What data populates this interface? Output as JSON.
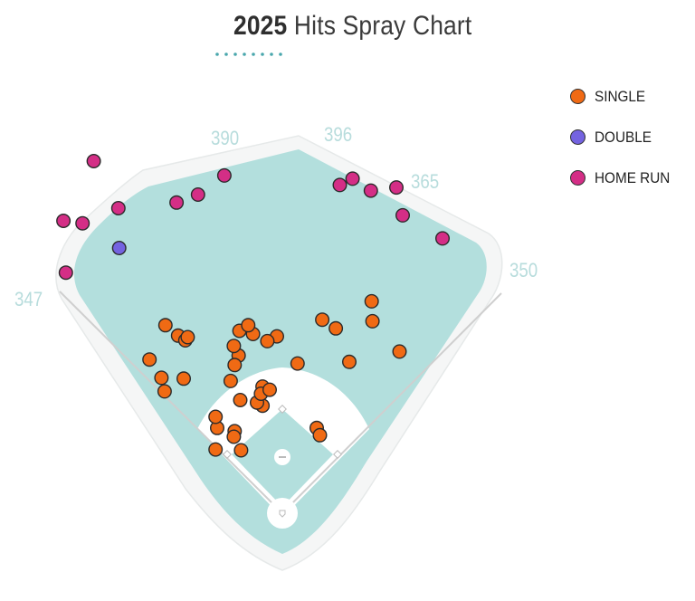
{
  "title": {
    "year": "2025",
    "rest": " Hits Spray Chart"
  },
  "colors": {
    "single": "#f06a14",
    "double": "#7463e0",
    "home_run": "#d42e86",
    "grass": "#b3dfdd",
    "warning_track": "#f4f5f5",
    "dirt": "#ffffff",
    "distance_label": "#b7dcdc",
    "title_accent": "#4aa7ad"
  },
  "distance_labels": {
    "lf": "347",
    "lcf": "390",
    "cf": "396",
    "rcf": "365",
    "rf": "350"
  },
  "legend": [
    {
      "key": "single",
      "label": "SINGLE"
    },
    {
      "key": "double",
      "label": "DOUBLE"
    },
    {
      "key": "home_run",
      "label": "HOME RUN"
    }
  ],
  "chart_data": {
    "type": "scatter",
    "title": "2025 Hits Spray Chart",
    "subtitle": "",
    "xlabel": "",
    "ylabel": "",
    "grid": false,
    "legend_position": "top-right",
    "coordinate_note": "hit locations on a baseball field diagram; home plate at origin, units arbitrary (field-relative)",
    "series": [
      {
        "name": "SINGLE",
        "color": "#f06a14",
        "points": [
          [
            -55,
            229
          ],
          [
            -8,
            222
          ],
          [
            -56,
            198
          ],
          [
            -62,
            210
          ],
          [
            -132,
            223
          ],
          [
            -123,
            217
          ],
          [
            -153,
            170
          ],
          [
            -148,
            236
          ],
          [
            -125,
            169
          ],
          [
            -120,
            221
          ],
          [
            -168,
            193
          ],
          [
            -149,
            153
          ],
          [
            -66,
            166
          ],
          [
            18,
            188
          ],
          [
            49,
            243
          ],
          [
            66,
            232
          ],
          [
            111,
            266
          ],
          [
            83,
            190
          ],
          [
            112,
            241
          ],
          [
            146,
            203
          ],
          [
            -20,
            216
          ],
          [
            -38,
            225
          ],
          [
            -44,
            236
          ],
          [
            -61,
            186
          ],
          [
            -83,
            107
          ],
          [
            -61,
            103
          ],
          [
            -62,
            96
          ],
          [
            -54,
            142
          ],
          [
            -26,
            135
          ],
          [
            -26,
            159
          ],
          [
            -33,
            139
          ],
          [
            -28,
            150
          ],
          [
            -85,
            80
          ],
          [
            42,
            107
          ],
          [
            46,
            98
          ],
          [
            -53,
            79
          ],
          [
            -17,
            155
          ],
          [
            -85,
            121
          ]
        ]
      },
      {
        "name": "DOUBLE",
        "color": "#7463e0",
        "points": [
          [
            -206,
            333
          ]
        ]
      },
      {
        "name": "HOME RUN",
        "color": "#d42e86",
        "points": [
          [
            -273,
            302
          ],
          [
            -252,
            364
          ],
          [
            -276,
            367
          ],
          [
            -238,
            442
          ],
          [
            -207,
            383
          ],
          [
            -134,
            390
          ],
          [
            -107,
            400
          ],
          [
            -74,
            424
          ],
          [
            71,
            412
          ],
          [
            87,
            420
          ],
          [
            110,
            405
          ],
          [
            142,
            409
          ],
          [
            150,
            374
          ],
          [
            200,
            345
          ]
        ]
      }
    ]
  }
}
